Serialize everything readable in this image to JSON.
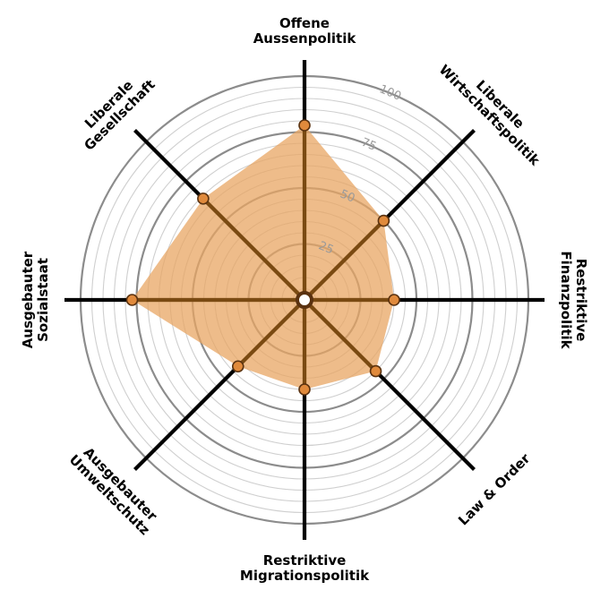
{
  "chart_data": {
    "type": "radar",
    "title": "",
    "axes": [
      {
        "label": [
          "Offene",
          "Aussenpolitik"
        ],
        "value": 78
      },
      {
        "label": [
          "Liberale",
          "Wirtschaftspolitik"
        ],
        "value": 50
      },
      {
        "label": [
          "Restriktive",
          "Finanzpolitik"
        ],
        "value": 40
      },
      {
        "label": [
          "Law & Order"
        ],
        "value": 45
      },
      {
        "label": [
          "Restriktive",
          "Migrationspolitik"
        ],
        "value": 40
      },
      {
        "label": [
          "Ausgebauter",
          "Umweltschutz"
        ],
        "value": 42
      },
      {
        "label": [
          "Ausgebauter",
          "Sozialstaat"
        ],
        "value": 77
      },
      {
        "label": [
          "Liberale",
          "Gesellschaft"
        ],
        "value": 64
      }
    ],
    "range": [
      0,
      100
    ],
    "ticks": [
      25,
      50,
      75,
      100
    ],
    "grid": true,
    "colors": {
      "fill": "#e8a563",
      "fill_opacity": 0.75,
      "spoke_inner": "#7a4a12",
      "spoke_outer": "#000000",
      "point_fill": "#e08a3c",
      "point_stroke": "#5a3210",
      "grid_major": "#8c8c8c",
      "grid_minor": "#cfcfcf",
      "tick_label": "#9a9a9a"
    }
  }
}
